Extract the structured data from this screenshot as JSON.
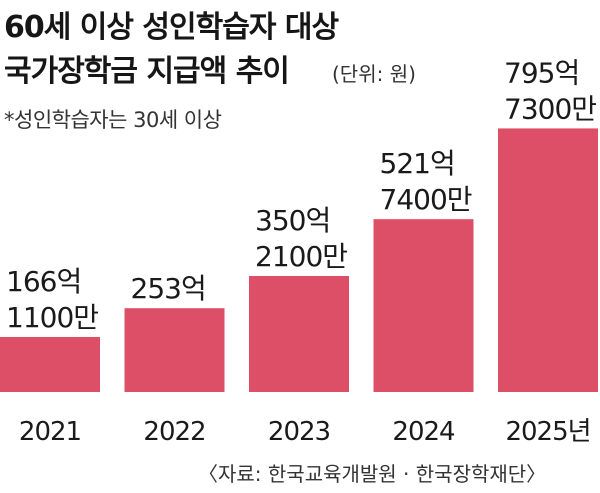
{
  "header": {
    "title_line1": "60세 이상 성인학습자 대상",
    "title_line2": "국가장학금 지급액 추이",
    "unit": "(단위: 원)",
    "note": "*성인학습자는 30세 이상"
  },
  "source": "〈자료: 한국교육개발원 · 한국장학재단〉",
  "colors": {
    "bar": "#dd4f66",
    "text": "#1a1a1a"
  },
  "chart_data": {
    "type": "bar",
    "categories": [
      "2021",
      "2022",
      "2023",
      "2024",
      "2025년"
    ],
    "values": [
      16611000000,
      25300000000,
      35021000000,
      52174000000,
      79573000000
    ],
    "data_labels": [
      [
        "166억",
        "1100만"
      ],
      [
        "253억"
      ],
      [
        "350억",
        "2100만"
      ],
      [
        "521억",
        "7400만"
      ],
      [
        "795억",
        "7300만"
      ]
    ],
    "title": "60세 이상 성인학습자 대상 국가장학금 지급액 추이",
    "xlabel": "",
    "ylabel": "",
    "ylim": [
      0,
      80000000000
    ],
    "grid": false,
    "legend": "none"
  }
}
